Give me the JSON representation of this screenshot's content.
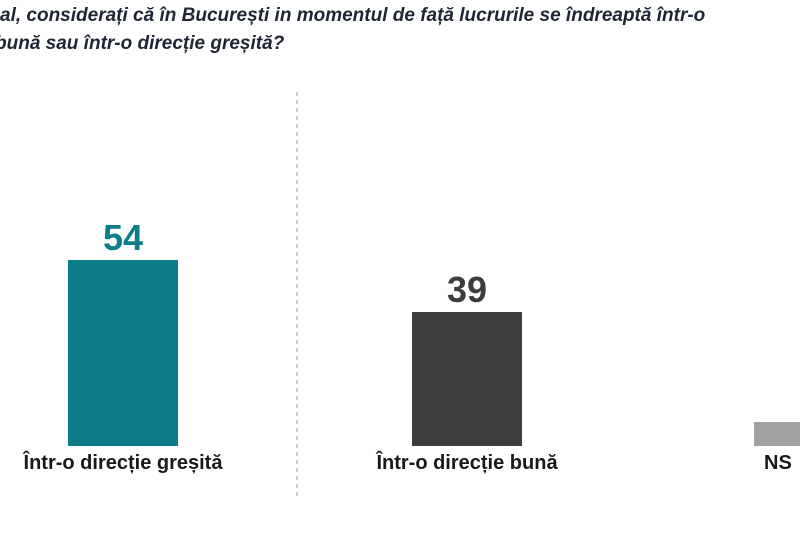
{
  "title": {
    "line1": "al, considerați că în București in momentul de față lucrurile se îndreaptă într-o",
    "line2": "bună sau într-o direcție greșită?"
  },
  "chart_data": {
    "type": "bar",
    "title": "al, considerați că în București in momentul de față lucrurile se îndreaptă într-o bună sau într-o direcție greșită?",
    "categories": [
      "Într-o direcție greșită",
      "Într-o direcție bună",
      "NS"
    ],
    "values": [
      54,
      39,
      7
    ],
    "value_labels": [
      "54",
      "39",
      ""
    ],
    "colors": [
      "#0C7E89",
      "#3D3D3D",
      "#A1A1A1"
    ],
    "xlabel": "",
    "ylabel": "",
    "ylim": [
      0,
      60
    ],
    "grid": false,
    "legend": false,
    "bar_orientation": "vertical"
  }
}
